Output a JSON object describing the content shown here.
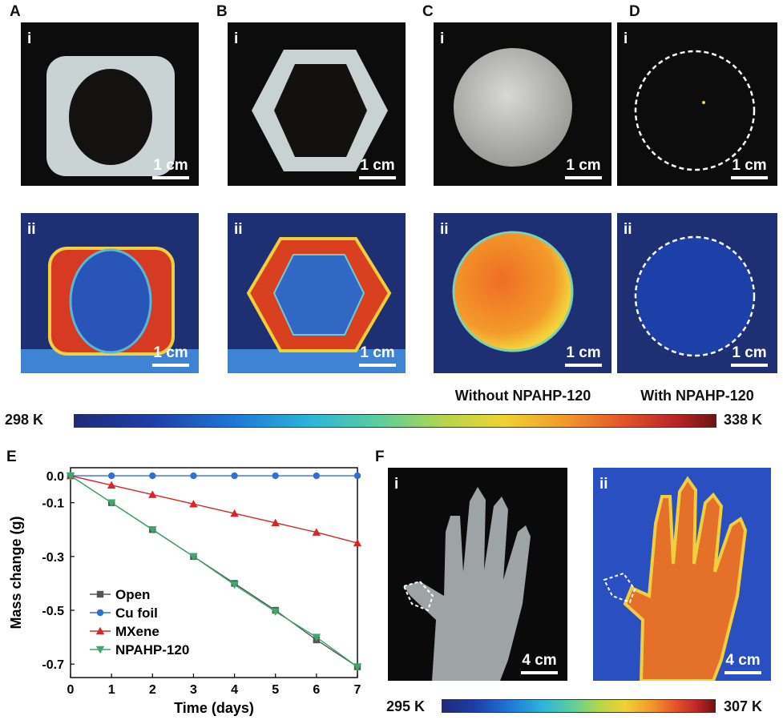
{
  "panels": {
    "A": {
      "letter": "A",
      "sub_i": "i",
      "sub_ii": "ii",
      "scale_i": "1 cm",
      "scale_ii": "1 cm"
    },
    "B": {
      "letter": "B",
      "sub_i": "i",
      "sub_ii": "ii",
      "scale_i": "1 cm",
      "scale_ii": "1 cm"
    },
    "C": {
      "letter": "C",
      "sub_i": "i",
      "sub_ii": "ii",
      "scale_i": "1 cm",
      "scale_ii": "1 cm",
      "caption": "Without NPAHP-120"
    },
    "D": {
      "letter": "D",
      "sub_i": "i",
      "sub_ii": "ii",
      "scale_i": "1 cm",
      "scale_ii": "1 cm",
      "caption": "With NPAHP-120"
    },
    "E": {
      "letter": "E"
    },
    "F": {
      "letter": "F",
      "sub_i": "i",
      "sub_ii": "ii",
      "scale_i": "4 cm",
      "scale_ii": "4 cm"
    }
  },
  "colorbar_top": {
    "min": "298 K",
    "max": "338 K"
  },
  "colorbar_bottom": {
    "min": "295 K",
    "max": "307 K"
  },
  "colors": {
    "open": "#555555",
    "cu_foil": "#2f6fd6",
    "mxene": "#d62728",
    "npahp": "#3aaa6a"
  },
  "chart_data": {
    "type": "line",
    "xlabel": "Time (days)",
    "ylabel": "Mass change (g)",
    "xlim": [
      0,
      7
    ],
    "ylim": [
      -0.75,
      0.03
    ],
    "xticks": [
      "0",
      "1",
      "2",
      "3",
      "4",
      "5",
      "6",
      "7"
    ],
    "yticks": [
      "0.0",
      "-0.1",
      "-0.3",
      "-0.5",
      "-0.7"
    ],
    "ytick_values": [
      0.0,
      -0.1,
      -0.3,
      -0.5,
      -0.7
    ],
    "x": [
      0,
      1,
      2,
      3,
      4,
      5,
      6,
      7
    ],
    "legend_position": "bottom-left",
    "series": [
      {
        "name": "Open",
        "marker": "square",
        "values": [
          0.0,
          -0.1,
          -0.2,
          -0.3,
          -0.4,
          -0.5,
          -0.61,
          -0.71
        ]
      },
      {
        "name": "Cu foil",
        "marker": "circle",
        "values": [
          0.0,
          0.0,
          0.0,
          0.0,
          0.0,
          0.0,
          0.0,
          0.0
        ]
      },
      {
        "name": "MXene",
        "marker": "triangle-up",
        "values": [
          0.0,
          -0.035,
          -0.07,
          -0.105,
          -0.14,
          -0.175,
          -0.21,
          -0.25
        ]
      },
      {
        "name": "NPAHP-120",
        "marker": "triangle-down",
        "values": [
          0.0,
          -0.1,
          -0.2,
          -0.3,
          -0.405,
          -0.505,
          -0.6,
          -0.71
        ]
      }
    ]
  }
}
